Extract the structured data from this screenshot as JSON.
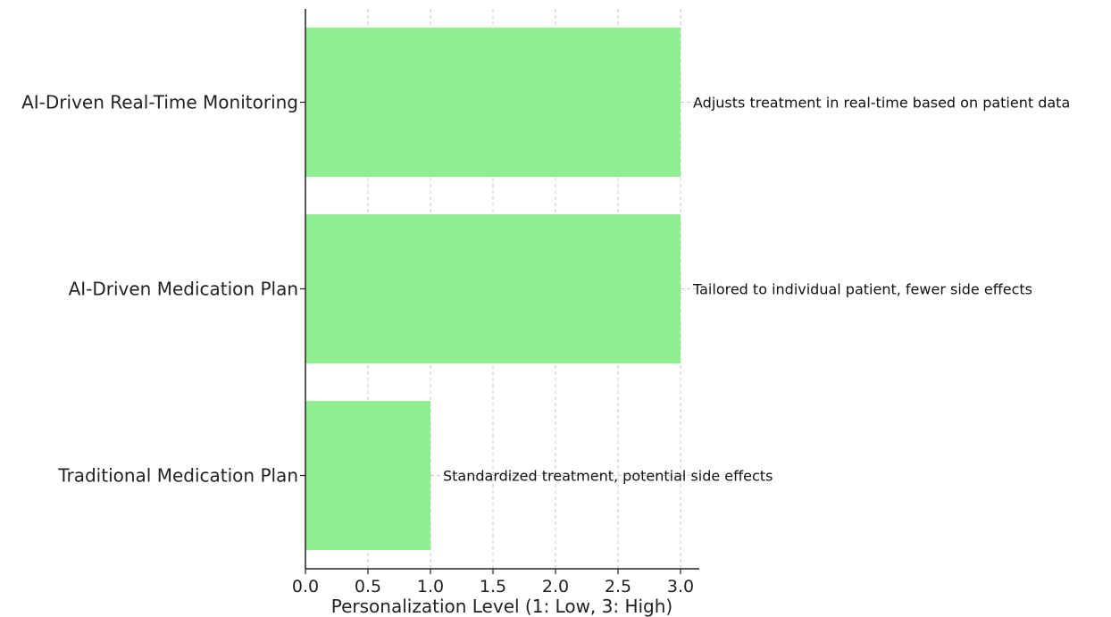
{
  "chart_data": {
    "type": "bar",
    "orientation": "horizontal",
    "categories": [
      "AI-Driven Real-Time Monitoring",
      "AI-Driven Medication Plan",
      "Traditional Medication Plan"
    ],
    "values": [
      3,
      3,
      1
    ],
    "annotations": [
      "Adjusts treatment in real-time based on patient data",
      "Tailored to individual patient, fewer side effects",
      "Standardized treatment, potential side effects"
    ],
    "xlabel": "Personalization Level (1: Low, 3: High)",
    "ylabel": "",
    "xlim": [
      0,
      3.15
    ],
    "xticks": [
      "0.0",
      "0.5",
      "1.0",
      "1.5",
      "2.0",
      "2.5",
      "3.0"
    ],
    "xtick_values": [
      0,
      0.5,
      1.0,
      1.5,
      2.0,
      2.5,
      3.0
    ],
    "grid": true,
    "bar_color": "#90ee90"
  }
}
